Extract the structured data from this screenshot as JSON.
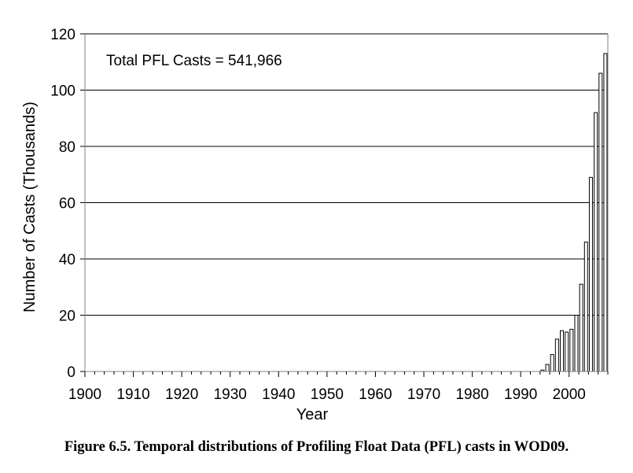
{
  "caption": "Figure 6.5. Temporal distributions of Profiling Float Data (PFL) casts in WOD09.",
  "chart_data": {
    "type": "bar",
    "title": "",
    "xlabel": "Year",
    "ylabel": "Number of Casts (Thousands)",
    "annotation": "Total PFL Casts = 541,966",
    "xlim": [
      1900,
      2008
    ],
    "ylim": [
      0,
      120
    ],
    "y_ticks": [
      "0",
      "20",
      "40",
      "60",
      "80",
      "100",
      "120"
    ],
    "x_ticks": [
      "1900",
      "1910",
      "1920",
      "1930",
      "1940",
      "1950",
      "1960",
      "1970",
      "1980",
      "1990",
      "2000"
    ],
    "grid": "horizontal",
    "legend": "none",
    "bar_color": "#ffffff",
    "edge_color": "#000000",
    "categories": [
      1994,
      1995,
      1996,
      1997,
      1998,
      1999,
      2000,
      2001,
      2002,
      2003,
      2004,
      2005,
      2006,
      2007
    ],
    "values": [
      0.5,
      2.5,
      6,
      11.5,
      14.5,
      14,
      15,
      20,
      31,
      46,
      69,
      92,
      106,
      113
    ]
  }
}
